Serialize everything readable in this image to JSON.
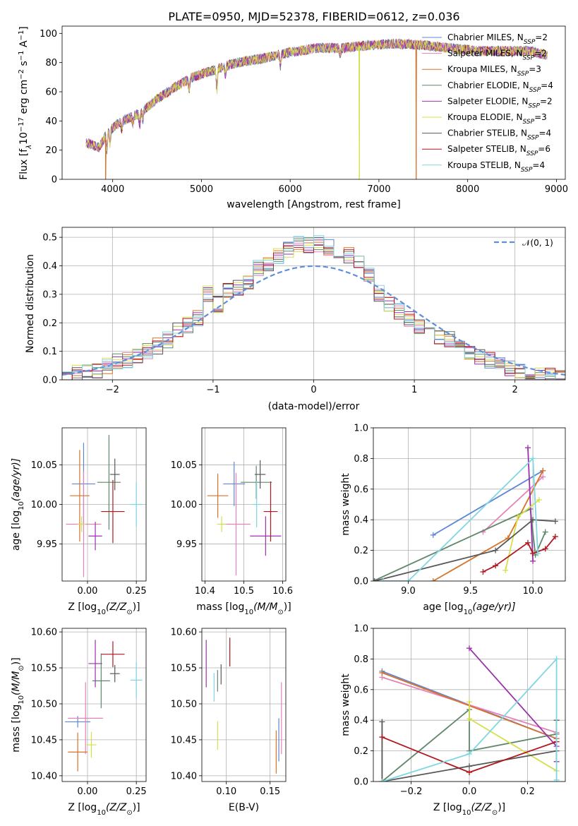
{
  "figure": {
    "title": "PLATE=0950, MJD=52378, FIBERID=0612, z=0.036"
  },
  "series_names": [
    "Chabrier MILES, N$_{SSP}$=2",
    "Salpeter MILES, N$_{SSP}$=2",
    "Kroupa MILES, N$_{SSP}$=3",
    "Chabrier ELODIE, N$_{SSP}$=4",
    "Salpeter ELODIE, N$_{SSP}$=2",
    "Kroupa ELODIE, N$_{SSP}$=3",
    "Chabrier STELIB, N$_{SSP}$=4",
    "Salpeter STELIB, N$_{SSP}$=6",
    "Kroupa STELIB, N$_{SSP}$=4"
  ],
  "series_labels": {
    "0": "Chabrier MILES, N",
    "1": "Salpeter MILES, N",
    "2": "Kroupa MILES, N",
    "3": "Chabrier ELODIE, N",
    "4": "Salpeter ELODIE, N",
    "5": "Kroupa ELODIE, N",
    "6": "Chabrier STELIB, N",
    "7": "Salpeter STELIB, N",
    "8": "Kroupa STELIB, N"
  },
  "series_sub": "SSP",
  "series_counts": [
    "=2",
    "=2",
    "=3",
    "=4",
    "=2",
    "=3",
    "=4",
    "=6",
    "=4"
  ],
  "series_colors": [
    "#5e86d6",
    "#e383b9",
    "#d8732a",
    "#5f876a",
    "#9b30ad",
    "#d4e04a",
    "#585858",
    "#b2161e",
    "#7fd6e0"
  ],
  "chart_data": [
    {
      "id": "spectrum",
      "type": "line",
      "xlabel": "wavelength [Angstrom, rest frame]",
      "ylabel_prefix": "Flux [f",
      "ylabel_lambda": "λ",
      "ylabel_scale": "10",
      "ylabel_exp": "−17",
      "ylabel_units": " erg cm",
      "ylabel_units_exp": "−2",
      "ylabel_units2": " s",
      "ylabel_units2_exp": "−1",
      "ylabel_units3": " A",
      "ylabel_units3_exp": "−1",
      "ylabel_close": "]",
      "xlim": [
        3430,
        9100
      ],
      "ylim": [
        0,
        105
      ],
      "xticks": [
        4000,
        5000,
        6000,
        7000,
        8000,
        9000
      ],
      "yticks": [
        0,
        20,
        40,
        60,
        80,
        100
      ],
      "continuum": [
        [
          3700,
          25
        ],
        [
          3850,
          22
        ],
        [
          3950,
          33
        ],
        [
          4100,
          40
        ],
        [
          4300,
          45
        ],
        [
          4500,
          55
        ],
        [
          4700,
          63
        ],
        [
          4900,
          70
        ],
        [
          5150,
          75
        ],
        [
          5400,
          80
        ],
        [
          5700,
          83
        ],
        [
          6000,
          87
        ],
        [
          6300,
          90
        ],
        [
          6600,
          90
        ],
        [
          6900,
          92
        ],
        [
          7200,
          93
        ],
        [
          7500,
          92
        ],
        [
          7800,
          90
        ],
        [
          8100,
          88
        ],
        [
          8400,
          88
        ],
        [
          8700,
          88
        ],
        [
          8900,
          85
        ]
      ],
      "dips": [
        [
          3934,
          12
        ],
        [
          3969,
          10
        ],
        [
          4102,
          6
        ],
        [
          4227,
          5
        ],
        [
          4304,
          8
        ],
        [
          4340,
          6
        ],
        [
          4861,
          7
        ],
        [
          5175,
          14
        ],
        [
          5270,
          6
        ],
        [
          5890,
          8
        ],
        [
          6563,
          5
        ]
      ],
      "spikes_to_zero": [
        {
          "series": 2,
          "x": 3920
        },
        {
          "series": 5,
          "x": 6780
        },
        {
          "series": 2,
          "x": 7420
        }
      ]
    },
    {
      "id": "residual_hist",
      "type": "histogram",
      "xlabel": "(data-model)/error",
      "ylabel": "Normed distribution",
      "xlim": [
        -2.5,
        2.5
      ],
      "ylim": [
        0,
        0.535
      ],
      "xticks": [
        -2,
        -1,
        0,
        1,
        2
      ],
      "yticks": [
        0.0,
        0.1,
        0.2,
        0.3,
        0.4,
        0.5
      ],
      "reference_label": "𝒩(0, 1)",
      "reference_color": "#5e8fd9",
      "bin_width": 0.1,
      "bin_start": -2.5,
      "deviation": [
        0.0,
        0.002,
        0.0,
        -0.004,
        0.0,
        0.003,
        -0.004,
        -0.003,
        0.0,
        0.0,
        0.0,
        0.01,
        0.01,
        0.01,
        0.07,
        0.01,
        0.03,
        0.02,
        0.02,
        0.05,
        0.05,
        0.06,
        0.07,
        0.08,
        0.07,
        0.08,
        0.07,
        0.06,
        0.06,
        0.05,
        0.02,
        -0.02,
        -0.04,
        -0.04,
        -0.04,
        -0.04,
        -0.03,
        -0.03,
        -0.02,
        -0.02,
        -0.02,
        -0.02,
        -0.02,
        -0.02,
        -0.02,
        -0.02,
        -0.02,
        -0.015,
        -0.01,
        -0.01
      ]
    },
    {
      "id": "age_vs_Z",
      "type": "errorbar",
      "xlabel_prefix": "Z [log",
      "xlabel_sub": "10",
      "xlabel_arg": "(Z/Z",
      "xlabel_sun": "⊙",
      "xlabel_close": ")]",
      "ylabel_prefix": "age  [log",
      "ylabel_sub": "10",
      "ylabel_arg": "(age/yr)]",
      "xlim": [
        -0.13,
        0.3
      ],
      "ylim": [
        9.903,
        10.097
      ],
      "xticks": [
        0.0,
        0.25
      ],
      "yticks": [
        9.95,
        10.0,
        10.05
      ],
      "points": [
        {
          "s": 0,
          "x": -0.02,
          "y": 10.026,
          "xe": 0.06,
          "ye": 0.052
        },
        {
          "s": 1,
          "x": -0.02,
          "y": 9.975,
          "xe": 0.09,
          "ye": 0.067
        },
        {
          "s": 2,
          "x": -0.04,
          "y": 10.011,
          "xe": 0.05,
          "ye": 0.058
        },
        {
          "s": 3,
          "x": 0.11,
          "y": 10.028,
          "xe": 0.06,
          "ye": 0.06
        },
        {
          "s": 4,
          "x": 0.04,
          "y": 9.96,
          "xe": 0.035,
          "ye": 0.018
        },
        {
          "s": 5,
          "x": -0.03,
          "y": 9.975,
          "xe": 0.02,
          "ye": 0.01
        },
        {
          "s": 6,
          "x": 0.14,
          "y": 10.038,
          "xe": 0.025,
          "ye": 0.02
        },
        {
          "s": 7,
          "x": 0.13,
          "y": 9.991,
          "xe": 0.06,
          "ye": 0.04
        },
        {
          "s": 8,
          "x": 0.25,
          "y": 10.0,
          "xe": 0.03,
          "ye": 0.028
        }
      ]
    },
    {
      "id": "age_vs_mass",
      "type": "errorbar",
      "xlabel_prefix": "mass [log",
      "xlabel_sub": "10",
      "xlabel_arg": "(M/M",
      "xlabel_sun": "⊙",
      "xlabel_close": ")]",
      "xlim": [
        10.392,
        10.608
      ],
      "ylim": [
        9.903,
        10.097
      ],
      "xticks": [
        10.4,
        10.5,
        10.6
      ],
      "yticks": [
        9.95,
        10.0,
        10.05
      ],
      "points": [
        {
          "s": 0,
          "x": 10.475,
          "y": 10.026,
          "xe": 0.028,
          "ye": 0.028
        },
        {
          "s": 1,
          "x": 10.48,
          "y": 9.975,
          "xe": 0.037,
          "ye": 0.065
        },
        {
          "s": 2,
          "x": 10.433,
          "y": 10.011,
          "xe": 0.027,
          "ye": 0.028
        },
        {
          "s": 3,
          "x": 10.532,
          "y": 10.028,
          "xe": 0.04,
          "ye": 0.021
        },
        {
          "s": 4,
          "x": 10.556,
          "y": 9.96,
          "xe": 0.04,
          "ye": 0.025
        },
        {
          "s": 5,
          "x": 10.443,
          "y": 9.975,
          "xe": 0.012,
          "ye": 0.01
        },
        {
          "s": 6,
          "x": 10.542,
          "y": 10.038,
          "xe": 0.014,
          "ye": 0.018
        },
        {
          "s": 7,
          "x": 10.569,
          "y": 9.991,
          "xe": 0.018,
          "ye": 0.038
        },
        {
          "s": 8,
          "x": 10.533,
          "y": 10.0,
          "xe": 0.011,
          "ye": 0.029
        }
      ]
    },
    {
      "id": "weight_vs_age",
      "type": "line",
      "xlabel_prefix": "age  [log",
      "xlabel_sub": "10",
      "xlabel_arg": "(age/yr)]",
      "ylabel": "mass weight",
      "xlim": [
        8.72,
        10.26
      ],
      "ylim": [
        0,
        1
      ],
      "xticks": [
        9.0,
        9.5,
        10.0
      ],
      "yticks": [
        0.0,
        0.2,
        0.4,
        0.6,
        0.8,
        1.0
      ],
      "series": [
        {
          "s": 0,
          "x": [
            9.2,
            10.08
          ],
          "y": [
            0.3,
            0.72
          ]
        },
        {
          "s": 1,
          "x": [
            9.6,
            10.08
          ],
          "y": [
            0.32,
            0.68
          ]
        },
        {
          "s": 2,
          "x": [
            9.2,
            9.8,
            10.08
          ],
          "y": [
            0.0,
            0.28,
            0.72
          ]
        },
        {
          "s": 3,
          "x": [
            8.72,
            9.98,
            10.02,
            10.1
          ],
          "y": [
            0.0,
            0.47,
            0.17,
            0.32
          ]
        },
        {
          "s": 4,
          "x": [
            9.96,
            10.0
          ],
          "y": [
            0.87,
            0.13
          ]
        },
        {
          "s": 5,
          "x": [
            9.78,
            9.88,
            10.05
          ],
          "y": [
            0.07,
            0.42,
            0.53
          ]
        },
        {
          "s": 6,
          "x": [
            8.73,
            9.7,
            10.0,
            10.18
          ],
          "y": [
            0.0,
            0.2,
            0.4,
            0.39
          ]
        },
        {
          "s": 7,
          "x": [
            9.6,
            9.7,
            9.96,
            10.0,
            10.1,
            10.18
          ],
          "y": [
            0.06,
            0.1,
            0.25,
            0.18,
            0.21,
            0.29
          ]
        },
        {
          "s": 8,
          "x": [
            8.8,
            9.0,
            10.0,
            10.04
          ],
          "y": [
            0.0,
            0.0,
            0.8,
            0.18
          ]
        }
      ]
    },
    {
      "id": "mass_vs_Z",
      "type": "errorbar",
      "xlabel_prefix": "Z [log",
      "xlabel_sub": "10",
      "xlabel_arg": "(Z/Z",
      "xlabel_sun": "⊙",
      "xlabel_close": ")]",
      "ylabel_prefix": "mass [log",
      "ylabel_sub": "10",
      "ylabel_arg": "(M/M",
      "ylabel_sun": "⊙",
      "ylabel_close": ")]",
      "xlim": [
        -0.13,
        0.3
      ],
      "ylim": [
        10.392,
        10.605
      ],
      "xticks": [
        0.0,
        0.25
      ],
      "yticks": [
        10.4,
        10.45,
        10.5,
        10.55,
        10.6
      ],
      "points": [
        {
          "s": 0,
          "x": -0.05,
          "y": 10.475,
          "xe": 0.065,
          "ye": 0.008
        },
        {
          "s": 1,
          "x": -0.01,
          "y": 10.48,
          "xe": 0.09,
          "ye": 0.05
        },
        {
          "s": 2,
          "x": -0.05,
          "y": 10.433,
          "xe": 0.05,
          "ye": 0.027
        },
        {
          "s": 3,
          "x": 0.07,
          "y": 10.532,
          "xe": 0.045,
          "ye": 0.038
        },
        {
          "s": 4,
          "x": 0.04,
          "y": 10.556,
          "xe": 0.035,
          "ye": 0.033
        },
        {
          "s": 5,
          "x": 0.02,
          "y": 10.443,
          "xe": 0.025,
          "ye": 0.018
        },
        {
          "s": 6,
          "x": 0.14,
          "y": 10.542,
          "xe": 0.025,
          "ye": 0.012
        },
        {
          "s": 7,
          "x": 0.13,
          "y": 10.569,
          "xe": 0.06,
          "ye": 0.018
        },
        {
          "s": 8,
          "x": 0.25,
          "y": 10.533,
          "xe": 0.03,
          "ye": 0.025
        }
      ]
    },
    {
      "id": "mass_vs_ebv",
      "type": "errorbar",
      "xlabel": "E(B-V)",
      "xlim": [
        0.072,
        0.168
      ],
      "ylim": [
        10.392,
        10.605
      ],
      "xticks": [
        0.1,
        0.15
      ],
      "yticks": [
        10.4,
        10.45,
        10.5,
        10.55,
        10.6
      ],
      "points": [
        {
          "s": 0,
          "x": 0.16,
          "y": 10.45,
          "xe": 0.0,
          "ye": 0.03
        },
        {
          "s": 1,
          "x": 0.163,
          "y": 10.48,
          "xe": 0.0,
          "ye": 0.05
        },
        {
          "s": 2,
          "x": 0.157,
          "y": 10.433,
          "xe": 0.0,
          "ye": 0.03
        },
        {
          "s": 3,
          "x": 0.09,
          "y": 10.532,
          "xe": 0.0,
          "ye": 0.015
        },
        {
          "s": 4,
          "x": 0.077,
          "y": 10.556,
          "xe": 0.0,
          "ye": 0.033
        },
        {
          "s": 5,
          "x": 0.09,
          "y": 10.456,
          "xe": 0.0,
          "ye": 0.02
        },
        {
          "s": 6,
          "x": 0.094,
          "y": 10.541,
          "xe": 0.0,
          "ye": 0.014
        },
        {
          "s": 7,
          "x": 0.104,
          "y": 10.572,
          "xe": 0.0,
          "ye": 0.02
        },
        {
          "s": 8,
          "x": 0.086,
          "y": 10.523,
          "xe": 0.0,
          "ye": 0.02
        }
      ]
    },
    {
      "id": "weight_vs_Z",
      "type": "line",
      "xlabel_prefix": "Z [log",
      "xlabel_sub": "10",
      "xlabel_arg": "(Z/Z",
      "xlabel_sun": "⊙",
      "xlabel_close": ")]",
      "ylabel": "mass weight",
      "xlim": [
        -0.33,
        0.33
      ],
      "ylim": [
        0,
        1
      ],
      "xticks": [
        -0.2,
        0.0,
        0.2
      ],
      "yticks": [
        0.0,
        0.2,
        0.4,
        0.6,
        0.8,
        1.0
      ],
      "series": [
        {
          "s": 0,
          "x": [
            -0.3,
            0.3
          ],
          "y": [
            0.72,
            0.28
          ]
        },
        {
          "s": 1,
          "x": [
            -0.3,
            0.3
          ],
          "y": [
            0.68,
            0.32
          ]
        },
        {
          "s": 2,
          "x": [
            -0.3,
            0.3
          ],
          "y": [
            0.71,
            0.28
          ]
        },
        {
          "s": 3,
          "x": [
            -0.3,
            0.0,
            0.0,
            0.3
          ],
          "y": [
            0.0,
            0.47,
            0.2,
            0.31
          ]
        },
        {
          "s": 4,
          "x": [
            0.0,
            0.3,
            0.3
          ],
          "y": [
            0.87,
            0.23,
            0.13
          ]
        },
        {
          "s": 5,
          "x": [
            0.0,
            0.0,
            0.3
          ],
          "y": [
            0.52,
            0.41,
            0.07
          ]
        },
        {
          "s": 6,
          "x": [
            -0.3,
            -0.3,
            0.0,
            0.3,
            0.3
          ],
          "y": [
            0.39,
            0.0,
            0.1,
            0.2,
            0.4
          ]
        },
        {
          "s": 7,
          "x": [
            -0.3,
            0.0,
            0.3
          ],
          "y": [
            0.29,
            0.06,
            0.26
          ]
        },
        {
          "s": 8,
          "x": [
            -0.3,
            0.0,
            0.3,
            0.3
          ],
          "y": [
            0.0,
            0.18,
            0.8,
            0.01
          ]
        }
      ]
    }
  ]
}
